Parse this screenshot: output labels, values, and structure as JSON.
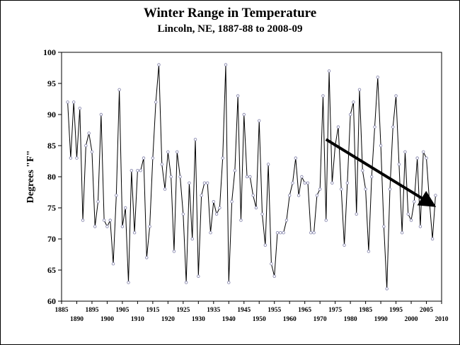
{
  "chart_data": {
    "type": "line",
    "title": "Winter Range in Temperature",
    "subtitle": "Lincoln, NE, 1887-88 to 2008-09",
    "xlabel": "",
    "ylabel": "Degrees \"F\"",
    "xlim": [
      1885,
      2010
    ],
    "ylim": [
      60,
      100
    ],
    "grid": false,
    "legend": "none",
    "y_ticks": [
      "60",
      "65",
      "70",
      "75",
      "80",
      "85",
      "90",
      "95",
      "100"
    ],
    "x_ticks_upper": [
      "1885",
      "1895",
      "1905",
      "1915",
      "1925",
      "1935",
      "1945",
      "1955",
      "1965",
      "1975",
      "1985",
      "1995",
      "2005"
    ],
    "x_ticks_lower": [
      "1890",
      "1900",
      "1910",
      "1920",
      "1930",
      "1940",
      "1950",
      "1960",
      "1970",
      "1980",
      "1990",
      "2000",
      "2010"
    ],
    "series": [
      {
        "x": [
          1887,
          1888,
          1889,
          1890,
          1891,
          1892,
          1893,
          1894,
          1895,
          1896,
          1897,
          1898,
          1899,
          1900,
          1901,
          1902,
          1903,
          1904,
          1905,
          1906,
          1907,
          1908,
          1909,
          1910,
          1911,
          1912,
          1913,
          1914,
          1915,
          1916,
          1917,
          1918,
          1919,
          1920,
          1921,
          1922,
          1923,
          1924,
          1925,
          1926,
          1927,
          1928,
          1929,
          1930,
          1931,
          1932,
          1933,
          1934,
          1935,
          1936,
          1937,
          1938,
          1939,
          1940,
          1941,
          1942,
          1943,
          1944,
          1945,
          1946,
          1947,
          1948,
          1949,
          1950,
          1951,
          1952,
          1953,
          1954,
          1955,
          1956,
          1957,
          1958,
          1959,
          1960,
          1961,
          1962,
          1963,
          1964,
          1965,
          1966,
          1967,
          1968,
          1969,
          1970,
          1971,
          1972,
          1973,
          1974,
          1975,
          1976,
          1977,
          1978,
          1979,
          1980,
          1981,
          1982,
          1983,
          1984,
          1985,
          1986,
          1987,
          1988,
          1989,
          1990,
          1991,
          1992,
          1993,
          1994,
          1995,
          1996,
          1997,
          1998,
          1999,
          2000,
          2001,
          2002,
          2003,
          2004,
          2005,
          2006,
          2007,
          2008
        ],
        "values": [
          92,
          83,
          92,
          83,
          91,
          73,
          85,
          87,
          84,
          72,
          76,
          90,
          73,
          72,
          73,
          66,
          77,
          94,
          72,
          75,
          63,
          81,
          71,
          81,
          81,
          83,
          67,
          72,
          83,
          92,
          98,
          82,
          78,
          84,
          80,
          68,
          84,
          80,
          74,
          63,
          79,
          70,
          86,
          64,
          77,
          79,
          79,
          71,
          76,
          74,
          75,
          83,
          98,
          63,
          76,
          81,
          93,
          73,
          90,
          80,
          80,
          77,
          75,
          89,
          74,
          69,
          82,
          66,
          64,
          71,
          71,
          71,
          73,
          77,
          79,
          83,
          77,
          80,
          79,
          79,
          71,
          71,
          77,
          78,
          93,
          73,
          97,
          79,
          85,
          88,
          78,
          69,
          79,
          90,
          92,
          74,
          94,
          81,
          78,
          68,
          80,
          88,
          96,
          85,
          72,
          62,
          78,
          88,
          93,
          82,
          71,
          84,
          74,
          73,
          76,
          83,
          72,
          84,
          83,
          76,
          70,
          77
        ]
      }
    ],
    "annotations": [
      {
        "type": "arrow",
        "from": [
          1972,
          86
        ],
        "to": [
          2007,
          75.5
        ]
      }
    ]
  },
  "colors": {
    "line": "#000000",
    "marker_fill": "#ffffff",
    "marker_stroke": "#7f7fa8",
    "arrow": "#000000",
    "axis": "#000000"
  }
}
